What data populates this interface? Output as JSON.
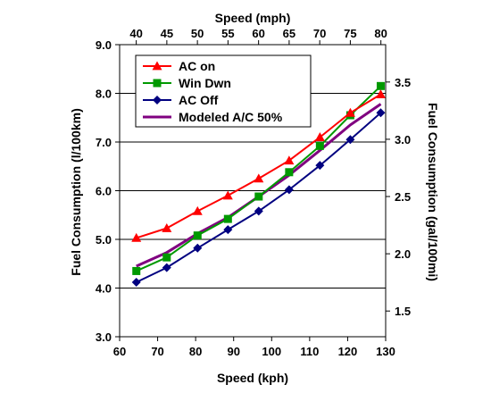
{
  "chart_data": {
    "type": "line",
    "x_bottom": {
      "label": "Speed (kph)",
      "range": [
        60,
        130
      ],
      "ticks": [
        60,
        70,
        80,
        90,
        100,
        110,
        120,
        130
      ]
    },
    "x_top": {
      "label": "Speed (mph)",
      "ticks": [
        40,
        45,
        50,
        55,
        60,
        65,
        70,
        75,
        80
      ]
    },
    "y_left": {
      "label": "Fuel Consumption (l/100km)",
      "range": [
        3.0,
        9.0
      ],
      "ticks": [
        "3.0",
        "4.0",
        "5.0",
        "6.0",
        "7.0",
        "8.0",
        "9.0"
      ]
    },
    "y_right": {
      "label": "Fuel Consumption (gal/100mi)",
      "ticks": [
        "1.5",
        "2.0",
        "2.5",
        "3.0",
        "3.5"
      ]
    },
    "grid": "horizontal",
    "legend_position": "top-left",
    "series": [
      {
        "name": "AC on",
        "color": "#ff0000",
        "marker": "triangle",
        "x": [
          64.4,
          72.4,
          80.5,
          88.5,
          96.6,
          104.6,
          112.7,
          120.7,
          128.7
        ],
        "y": [
          5.03,
          5.23,
          5.58,
          5.9,
          6.25,
          6.62,
          7.1,
          7.6,
          7.98
        ]
      },
      {
        "name": "Win Dwn",
        "color": "#009900",
        "marker": "square",
        "x": [
          64.4,
          72.4,
          80.5,
          88.5,
          96.6,
          104.6,
          112.7,
          120.7,
          128.7
        ],
        "y": [
          4.35,
          4.63,
          5.08,
          5.42,
          5.88,
          6.38,
          6.92,
          7.55,
          8.15
        ]
      },
      {
        "name": "AC Off",
        "color": "#000080",
        "marker": "diamond",
        "x": [
          64.4,
          72.4,
          80.5,
          88.5,
          96.6,
          104.6,
          112.7,
          120.7,
          128.7
        ],
        "y": [
          4.12,
          4.42,
          4.82,
          5.2,
          5.58,
          6.02,
          6.52,
          7.05,
          7.6
        ]
      },
      {
        "name": "Modeled A/C 50%",
        "color": "#800080",
        "marker": "none",
        "x": [
          64.4,
          72.4,
          80.5,
          88.5,
          96.6,
          104.6,
          112.7,
          120.7,
          128.7
        ],
        "y": [
          4.45,
          4.73,
          5.12,
          5.45,
          5.88,
          6.32,
          6.83,
          7.35,
          7.78
        ]
      }
    ]
  }
}
